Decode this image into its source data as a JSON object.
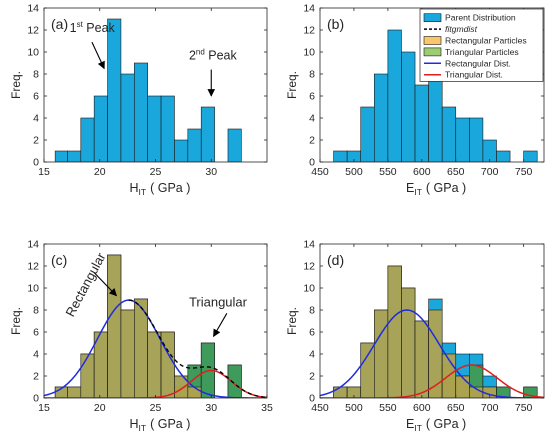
{
  "colors": {
    "parent": "#1aa7dc",
    "rect_particles": "#b3a34e",
    "tri_particles": "#3f9b5c",
    "fit": "#000000",
    "rect_dist": "#1f2be0",
    "tri_dist": "#e01e1e",
    "axis": "#262626"
  },
  "chart_data": [
    {
      "type": "bar",
      "panel_label": "(a)",
      "xlabel": "H",
      "xlabel_sub": "IT",
      "xlabel_unit": "( GPa )",
      "ylabel": "Freq.",
      "xlim": [
        15,
        35
      ],
      "ylim": [
        0,
        14
      ],
      "xticks": [
        15,
        20,
        25,
        30
      ],
      "yticks": [
        0,
        2,
        4,
        6,
        8,
        10,
        12,
        14
      ],
      "bins": [
        {
          "x0": 16.0,
          "x1": 17.1,
          "parent": 1
        },
        {
          "x0": 17.1,
          "x1": 18.3,
          "parent": 1
        },
        {
          "x0": 18.3,
          "x1": 19.5,
          "parent": 4
        },
        {
          "x0": 19.5,
          "x1": 20.7,
          "parent": 6
        },
        {
          "x0": 20.7,
          "x1": 21.9,
          "parent": 13
        },
        {
          "x0": 21.9,
          "x1": 23.1,
          "parent": 8
        },
        {
          "x0": 23.1,
          "x1": 24.3,
          "parent": 9
        },
        {
          "x0": 24.3,
          "x1": 25.5,
          "parent": 6
        },
        {
          "x0": 25.5,
          "x1": 26.7,
          "parent": 6
        },
        {
          "x0": 26.7,
          "x1": 27.9,
          "parent": 2
        },
        {
          "x0": 27.9,
          "x1": 29.1,
          "parent": 3
        },
        {
          "x0": 29.1,
          "x1": 30.3,
          "parent": 5
        },
        {
          "x0": 31.5,
          "x1": 32.7,
          "parent": 3
        }
      ],
      "annotations": [
        {
          "base": "1",
          "sup": "st",
          "rest": " Peak",
          "tx": 17.3,
          "ty": 11.8,
          "ax": 19.3,
          "ay": 10.9,
          "bx": 20.4,
          "by": 8.5
        },
        {
          "base": "2",
          "sup": "nd",
          "rest": " Peak",
          "tx": 28.0,
          "ty": 9.3,
          "ax": 30.0,
          "ay": 8.4,
          "bx": 30.0,
          "by": 6.0
        }
      ]
    },
    {
      "type": "bar",
      "panel_label": "(b)",
      "xlabel": "E",
      "xlabel_sub": "IT",
      "xlabel_unit": "( GPa )",
      "ylabel": "Freq.",
      "xlim": [
        450,
        780
      ],
      "ylim": [
        0,
        14
      ],
      "xticks": [
        450,
        500,
        550,
        600,
        650,
        700,
        750
      ],
      "yticks": [
        0,
        2,
        4,
        6,
        8,
        10,
        12,
        14
      ],
      "bins": [
        {
          "x0": 470,
          "x1": 490,
          "parent": 1
        },
        {
          "x0": 490,
          "x1": 510,
          "parent": 1
        },
        {
          "x0": 510,
          "x1": 530,
          "parent": 5
        },
        {
          "x0": 530,
          "x1": 550,
          "parent": 8
        },
        {
          "x0": 550,
          "x1": 570,
          "parent": 12
        },
        {
          "x0": 570,
          "x1": 590,
          "parent": 10
        },
        {
          "x0": 590,
          "x1": 610,
          "parent": 7
        },
        {
          "x0": 610,
          "x1": 630,
          "parent": 9
        },
        {
          "x0": 630,
          "x1": 650,
          "parent": 5
        },
        {
          "x0": 650,
          "x1": 670,
          "parent": 4
        },
        {
          "x0": 670,
          "x1": 690,
          "parent": 4
        },
        {
          "x0": 690,
          "x1": 710,
          "parent": 2
        },
        {
          "x0": 710,
          "x1": 730,
          "parent": 1
        },
        {
          "x0": 750,
          "x1": 770,
          "parent": 1
        }
      ],
      "legend": {
        "placement": "top-right",
        "entries": [
          {
            "label": "Parent Distribution",
            "kind": "patch",
            "color": "#1aa7dc"
          },
          {
            "label": "fitgmdist",
            "kind": "dash",
            "color": "#000000",
            "italic": true
          },
          {
            "label": "Rectangular Particles",
            "kind": "patch",
            "color": "#f9c66a"
          },
          {
            "label": "Triangular Particles",
            "kind": "patch",
            "color": "#9ccd70"
          },
          {
            "label": "Rectangular Dist.",
            "kind": "line",
            "color": "#1f2be0"
          },
          {
            "label": "Triangular Dist.",
            "kind": "line",
            "color": "#e01e1e"
          }
        ]
      }
    },
    {
      "type": "bar",
      "panel_label": "(c)",
      "xlabel": "H",
      "xlabel_sub": "IT",
      "xlabel_unit": "( GPa )",
      "ylabel": "Freq.",
      "xlim": [
        15,
        35
      ],
      "ylim": [
        0,
        14
      ],
      "xticks": [
        15,
        20,
        25,
        30,
        35
      ],
      "yticks": [
        0,
        2,
        4,
        6,
        8,
        10,
        12,
        14
      ],
      "bins": [
        {
          "x0": 16.0,
          "x1": 17.1,
          "parent": 1,
          "rect": 1,
          "tri": 0
        },
        {
          "x0": 17.1,
          "x1": 18.3,
          "parent": 1,
          "rect": 1,
          "tri": 0
        },
        {
          "x0": 18.3,
          "x1": 19.5,
          "parent": 4,
          "rect": 4,
          "tri": 0
        },
        {
          "x0": 19.5,
          "x1": 20.7,
          "parent": 6,
          "rect": 6,
          "tri": 0
        },
        {
          "x0": 20.7,
          "x1": 21.9,
          "parent": 13,
          "rect": 13,
          "tri": 0
        },
        {
          "x0": 21.9,
          "x1": 23.1,
          "parent": 8,
          "rect": 8,
          "tri": 0
        },
        {
          "x0": 23.1,
          "x1": 24.3,
          "parent": 9,
          "rect": 9,
          "tri": 0
        },
        {
          "x0": 24.3,
          "x1": 25.5,
          "parent": 6,
          "rect": 6,
          "tri": 0
        },
        {
          "x0": 25.5,
          "x1": 26.7,
          "parent": 6,
          "rect": 6,
          "tri": 0
        },
        {
          "x0": 26.7,
          "x1": 27.9,
          "parent": 2,
          "rect": 2,
          "tri": 1
        },
        {
          "x0": 27.9,
          "x1": 29.1,
          "parent": 3,
          "rect": 1,
          "tri": 3
        },
        {
          "x0": 29.1,
          "x1": 30.3,
          "parent": 5,
          "rect": 0,
          "tri": 5
        },
        {
          "x0": 31.5,
          "x1": 32.7,
          "parent": 3,
          "rect": 0,
          "tri": 3
        }
      ],
      "curves": {
        "rect": {
          "mu": 22.6,
          "sigma": 2.8,
          "peak": 8.9
        },
        "tri": {
          "mu": 30.0,
          "sigma": 1.8,
          "peak": 2.5
        },
        "fit": {
          "components": [
            "rect",
            "tri"
          ],
          "x_start": 22.6
        }
      },
      "annotations": [
        {
          "text": "Rectangular",
          "rotate": -62,
          "tx": 17.6,
          "ty": 7.3,
          "ax": 19.5,
          "ay": 11.4,
          "bx": 21.5,
          "by": 9.3
        },
        {
          "text": "Triangular",
          "rotate": 0,
          "tx": 28.0,
          "ty": 8.3,
          "ax": 31.4,
          "ay": 7.7,
          "bx": 30.2,
          "by": 5.6
        }
      ]
    },
    {
      "type": "bar",
      "panel_label": "(d)",
      "xlabel": "E",
      "xlabel_sub": "IT",
      "xlabel_unit": "( GPa )",
      "ylabel": "Freq.",
      "xlim": [
        450,
        780
      ],
      "ylim": [
        0,
        14
      ],
      "xticks": [
        450,
        500,
        550,
        600,
        650,
        700,
        750
      ],
      "yticks": [
        0,
        2,
        4,
        6,
        8,
        10,
        12,
        14
      ],
      "bins": [
        {
          "x0": 470,
          "x1": 490,
          "parent": 1,
          "rect": 1,
          "tri": 0
        },
        {
          "x0": 490,
          "x1": 510,
          "parent": 1,
          "rect": 1,
          "tri": 0
        },
        {
          "x0": 510,
          "x1": 530,
          "parent": 5,
          "rect": 5,
          "tri": 0
        },
        {
          "x0": 530,
          "x1": 550,
          "parent": 8,
          "rect": 8,
          "tri": 0
        },
        {
          "x0": 550,
          "x1": 570,
          "parent": 12,
          "rect": 12,
          "tri": 0
        },
        {
          "x0": 570,
          "x1": 590,
          "parent": 10,
          "rect": 10,
          "tri": 0
        },
        {
          "x0": 590,
          "x1": 610,
          "parent": 7,
          "rect": 7,
          "tri": 0
        },
        {
          "x0": 610,
          "x1": 630,
          "parent": 9,
          "rect": 8,
          "tri": 1
        },
        {
          "x0": 630,
          "x1": 650,
          "parent": 5,
          "rect": 4,
          "tri": 3
        },
        {
          "x0": 650,
          "x1": 670,
          "parent": 4,
          "rect": 2,
          "tri": 2
        },
        {
          "x0": 670,
          "x1": 690,
          "parent": 4,
          "rect": 1,
          "tri": 3
        },
        {
          "x0": 690,
          "x1": 710,
          "parent": 2,
          "rect": 1,
          "tri": 1
        },
        {
          "x0": 710,
          "x1": 730,
          "parent": 1,
          "rect": 0,
          "tri": 1
        },
        {
          "x0": 750,
          "x1": 770,
          "parent": 1,
          "rect": 0,
          "tri": 1
        }
      ],
      "curves": {
        "rect": {
          "mu": 578,
          "sigma": 48,
          "peak": 8.0
        },
        "tri": {
          "mu": 673,
          "sigma": 38,
          "peak": 3.0
        }
      }
    }
  ]
}
